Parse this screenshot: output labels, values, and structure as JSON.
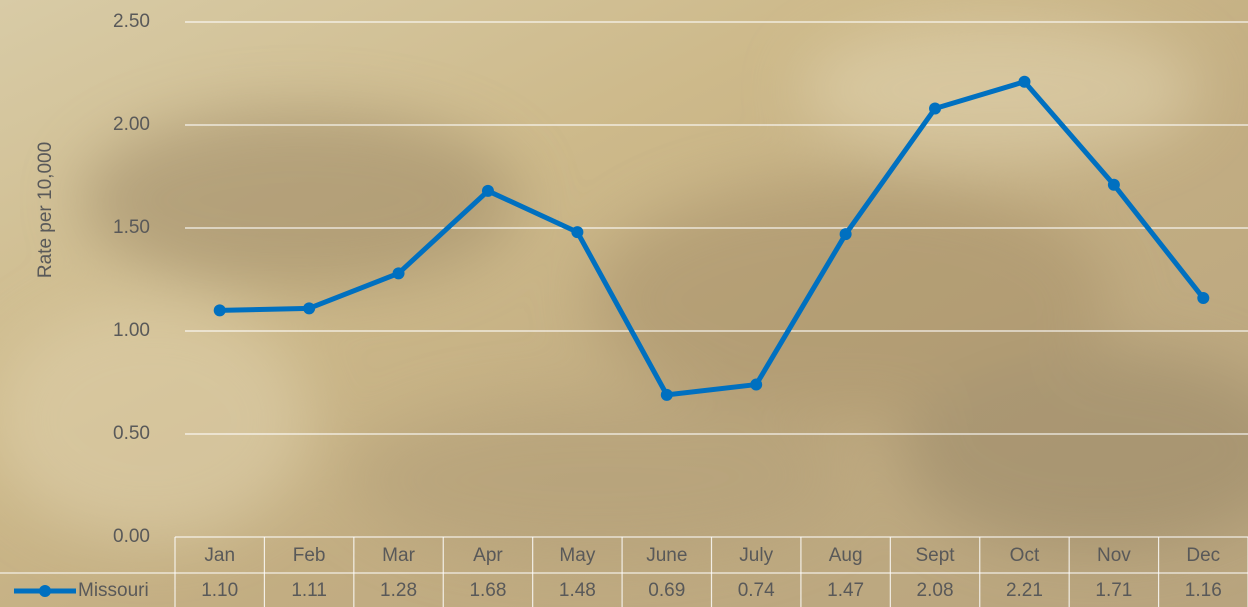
{
  "chart_data": {
    "type": "line",
    "y_axis_label": "Rate per 10,000",
    "categories": [
      "Jan",
      "Feb",
      "Mar",
      "Apr",
      "May",
      "June",
      "July",
      "Aug",
      "Sept",
      "Oct",
      "Nov",
      "Dec"
    ],
    "series": [
      {
        "name": "Missouri",
        "color": "#0070c0",
        "values": [
          1.1,
          1.11,
          1.28,
          1.68,
          1.48,
          0.69,
          0.74,
          1.47,
          2.08,
          2.21,
          1.71,
          1.16
        ],
        "value_labels": [
          "1.10",
          "1.11",
          "1.28",
          "1.68",
          "1.48",
          "0.69",
          "0.74",
          "1.47",
          "2.08",
          "2.21",
          "1.71",
          "1.16"
        ]
      }
    ],
    "ylim": [
      0,
      2.5
    ],
    "yticks": [
      {
        "value": 0,
        "label": "0.00"
      },
      {
        "value": 0.5,
        "label": "0.50"
      },
      {
        "value": 1,
        "label": "1.00"
      },
      {
        "value": 1.5,
        "label": "1.50"
      },
      {
        "value": 2,
        "label": "2.00"
      },
      {
        "value": 2.5,
        "label": "2.50"
      }
    ],
    "grid": true
  }
}
